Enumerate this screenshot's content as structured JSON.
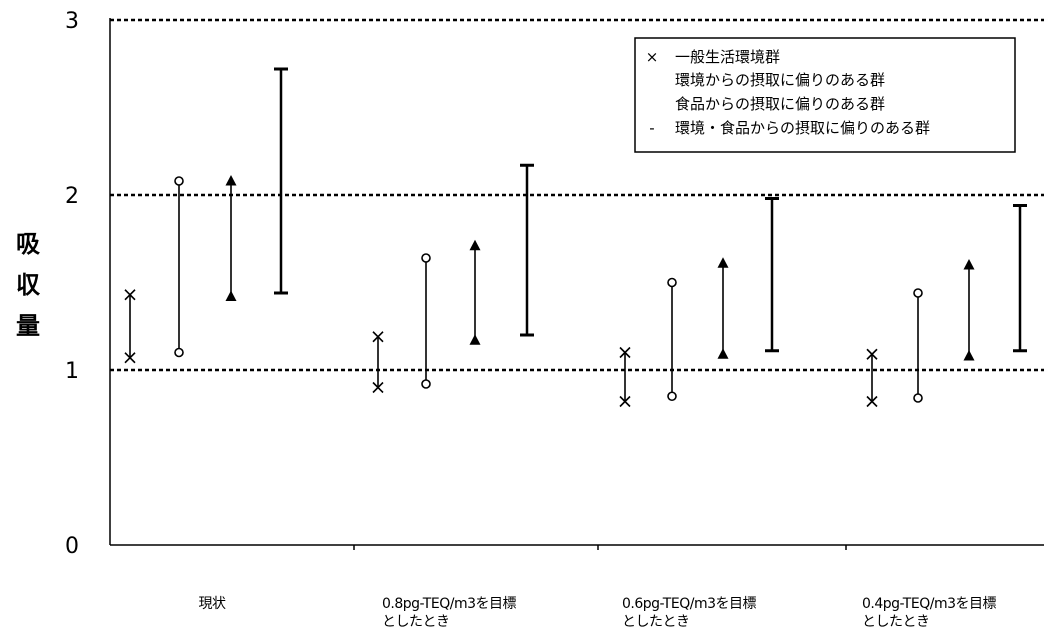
{
  "chart_data": {
    "type": "range",
    "ylabel": "吸収量",
    "ylim": [
      0,
      3
    ],
    "yticks": [
      "0",
      "1",
      "2",
      "3"
    ],
    "reference_lines": [
      1,
      2,
      3
    ],
    "categories": [
      [
        "現状"
      ],
      [
        "0.8pg-TEQ/m3を目標",
        "としたとき"
      ],
      [
        "0.6pg-TEQ/m3を目標",
        "としたとき"
      ],
      [
        "0.4pg-TEQ/m3を目標",
        "としたとき"
      ]
    ],
    "legend": {
      "position": "top-right",
      "entries": [
        {
          "marker": "×",
          "label": "一般生活環境群"
        },
        {
          "marker": "",
          "label": "環境からの摂取に偏りのある群"
        },
        {
          "marker": "",
          "label": "食品からの摂取に偏りのある群"
        },
        {
          "marker": "-",
          "label": "環境・食品からの摂取に偏りのある群"
        }
      ]
    },
    "series": [
      {
        "marker": "cross",
        "ranges": [
          [
            1.07,
            1.43
          ],
          [
            0.9,
            1.19
          ],
          [
            0.82,
            1.1
          ],
          [
            0.82,
            1.09
          ]
        ]
      },
      {
        "marker": "circle",
        "ranges": [
          [
            1.1,
            2.08
          ],
          [
            0.92,
            1.64
          ],
          [
            0.85,
            1.5
          ],
          [
            0.84,
            1.44
          ]
        ]
      },
      {
        "marker": "triangle",
        "ranges": [
          [
            1.42,
            2.08
          ],
          [
            1.17,
            1.71
          ],
          [
            1.09,
            1.61
          ],
          [
            1.08,
            1.6
          ]
        ]
      },
      {
        "marker": "dash",
        "ranges": [
          [
            1.44,
            2.72
          ],
          [
            1.2,
            2.17
          ],
          [
            1.11,
            1.98
          ],
          [
            1.11,
            1.94
          ]
        ]
      }
    ]
  }
}
